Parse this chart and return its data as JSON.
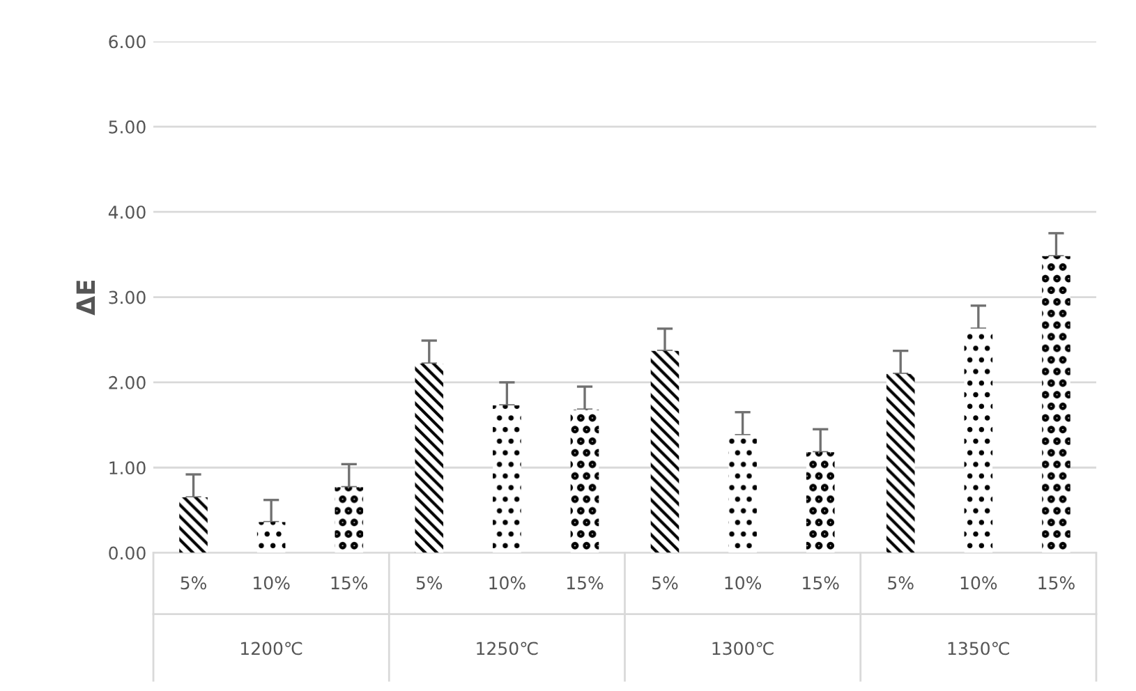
{
  "chart_data": {
    "type": "bar",
    "ylabel": "ΔE",
    "categories": [
      "1200℃",
      "1250℃",
      "1300℃",
      "1350℃"
    ],
    "series": [
      {
        "name": "5%",
        "color": "#000000",
        "values": [
          0.65,
          2.22,
          2.37,
          2.1
        ],
        "errors": [
          [
            0.65,
            0.92
          ],
          [
            2.22,
            2.49
          ],
          [
            2.37,
            2.63
          ],
          [
            2.1,
            2.37
          ]
        ]
      },
      {
        "name": "10%",
        "color": "#000000",
        "values": [
          0.36,
          1.73,
          1.38,
          2.63
        ],
        "errors": [
          [
            0.36,
            0.62
          ],
          [
            1.73,
            2.0
          ],
          [
            1.38,
            1.65
          ],
          [
            2.63,
            2.9
          ]
        ]
      },
      {
        "name": "15%",
        "color": "#000000",
        "values": [
          0.77,
          1.68,
          1.18,
          3.48
        ],
        "errors": [
          [
            0.77,
            1.04
          ],
          [
            1.68,
            1.95
          ],
          [
            1.18,
            1.45
          ],
          [
            3.48,
            3.75
          ]
        ]
      }
    ],
    "ylim": [
      0,
      6
    ],
    "yticks": [
      {
        "value": 0,
        "label": "0.00"
      },
      {
        "value": 1,
        "label": "1.00"
      },
      {
        "value": 2,
        "label": "2.00"
      },
      {
        "value": 3,
        "label": "3.00"
      },
      {
        "value": 4,
        "label": "4.00"
      },
      {
        "value": 5,
        "label": "5.00"
      },
      {
        "value": 6,
        "label": "6.00"
      }
    ],
    "grid": "y",
    "legend": false
  }
}
